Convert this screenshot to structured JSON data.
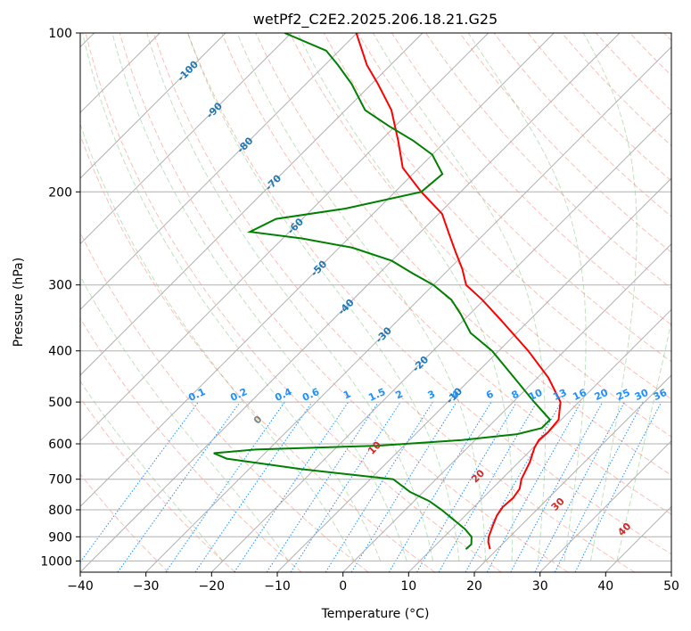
{
  "chart_data": {
    "type": "line",
    "title": "wetPf2_C2E2.2025.206.18.21.G25",
    "xlabel": "Temperature (°C)",
    "ylabel": "Pressure (hPa)",
    "xlim": [
      -40,
      50
    ],
    "ylim": [
      1050,
      100
    ],
    "y_scale": "log",
    "x_ticks": [
      -40,
      -30,
      -20,
      -10,
      0,
      10,
      20,
      30,
      40,
      50
    ],
    "y_ticks": [
      100,
      200,
      300,
      400,
      500,
      600,
      700,
      800,
      900,
      1000
    ],
    "grid": true,
    "series": [
      {
        "color": "#ff0000",
        "points": [
          {
            "p": 950,
            "t": 18.9
          },
          {
            "p": 920,
            "t": 17.5
          },
          {
            "p": 900,
            "t": 16.8
          },
          {
            "p": 860,
            "t": 15.8
          },
          {
            "p": 820,
            "t": 14.8
          },
          {
            "p": 790,
            "t": 14.4
          },
          {
            "p": 760,
            "t": 14.6
          },
          {
            "p": 730,
            "t": 14.2
          },
          {
            "p": 700,
            "t": 13.0
          },
          {
            "p": 650,
            "t": 11.7
          },
          {
            "p": 610,
            "t": 10.2
          },
          {
            "p": 590,
            "t": 9.7
          },
          {
            "p": 570,
            "t": 9.9
          },
          {
            "p": 540,
            "t": 9.6
          },
          {
            "p": 500,
            "t": 7.2
          },
          {
            "p": 450,
            "t": 1.7
          },
          {
            "p": 400,
            "t": -5.5
          },
          {
            "p": 350,
            "t": -14.3
          },
          {
            "p": 320,
            "t": -20.3
          },
          {
            "p": 300,
            "t": -25.0
          },
          {
            "p": 280,
            "t": -28.0
          },
          {
            "p": 260,
            "t": -31.6
          },
          {
            "p": 240,
            "t": -35.4
          },
          {
            "p": 220,
            "t": -39.5
          },
          {
            "p": 200,
            "t": -46.0
          },
          {
            "p": 180,
            "t": -52.5
          },
          {
            "p": 160,
            "t": -57.3
          },
          {
            "p": 140,
            "t": -63.0
          },
          {
            "p": 125,
            "t": -69.0
          },
          {
            "p": 115,
            "t": -73.6
          },
          {
            "p": 100,
            "t": -80.1
          }
        ]
      },
      {
        "color": "#008000",
        "points": [
          {
            "p": 950,
            "t": 15.2
          },
          {
            "p": 930,
            "t": 15.3
          },
          {
            "p": 900,
            "t": 14.2
          },
          {
            "p": 870,
            "t": 12.0
          },
          {
            "p": 840,
            "t": 9.3
          },
          {
            "p": 800,
            "t": 5.5
          },
          {
            "p": 770,
            "t": 2.3
          },
          {
            "p": 740,
            "t": -2.0
          },
          {
            "p": 700,
            "t": -6.5
          },
          {
            "p": 670,
            "t": -22.0
          },
          {
            "p": 640,
            "t": -35.0
          },
          {
            "p": 625,
            "t": -37.8
          },
          {
            "p": 615,
            "t": -32.0
          },
          {
            "p": 605,
            "t": -14.0
          },
          {
            "p": 590,
            "t": -2.0
          },
          {
            "p": 575,
            "t": 5.5
          },
          {
            "p": 560,
            "t": 8.3
          },
          {
            "p": 540,
            "t": 8.3
          },
          {
            "p": 500,
            "t": 3.2
          },
          {
            "p": 450,
            "t": -3.5
          },
          {
            "p": 400,
            "t": -11.0
          },
          {
            "p": 370,
            "t": -17.0
          },
          {
            "p": 340,
            "t": -21.5
          },
          {
            "p": 320,
            "t": -25.0
          },
          {
            "p": 300,
            "t": -30.0
          },
          {
            "p": 285,
            "t": -35.0
          },
          {
            "p": 270,
            "t": -40.0
          },
          {
            "p": 255,
            "t": -48.0
          },
          {
            "p": 245,
            "t": -57.0
          },
          {
            "p": 238,
            "t": -66.0
          },
          {
            "p": 225,
            "t": -64.0
          },
          {
            "p": 215,
            "t": -55.0
          },
          {
            "p": 200,
            "t": -46.0
          },
          {
            "p": 185,
            "t": -45.5
          },
          {
            "p": 170,
            "t": -50.0
          },
          {
            "p": 160,
            "t": -55.0
          },
          {
            "p": 150,
            "t": -61.0
          },
          {
            "p": 140,
            "t": -67.0
          },
          {
            "p": 125,
            "t": -73.0
          },
          {
            "p": 115,
            "t": -78.0
          },
          {
            "p": 108,
            "t": -82.0
          },
          {
            "p": 100,
            "t": -91.0
          }
        ]
      }
    ],
    "isotherm_labels": [
      {
        "value": -100,
        "text": "-100"
      },
      {
        "value": -90,
        "text": "-90"
      },
      {
        "value": -80,
        "text": "-80"
      },
      {
        "value": -70,
        "text": "-70"
      },
      {
        "value": -60,
        "text": "-60"
      },
      {
        "value": -50,
        "text": "-50"
      },
      {
        "value": -40,
        "text": "-40"
      },
      {
        "value": -30,
        "text": "-30"
      },
      {
        "value": -20,
        "text": "-20"
      },
      {
        "value": -10,
        "text": "-10"
      }
    ],
    "mixing_ratio_labels": [
      "0.1",
      "0.2",
      "0.4",
      "0.6",
      "1",
      "1.5",
      "2",
      "3",
      "4",
      "6",
      "8",
      "10",
      "13",
      "16",
      "20",
      "25",
      "30",
      "36"
    ],
    "mixing_ratio_values": [
      0.1,
      0.2,
      0.4,
      0.6,
      1,
      1.5,
      2,
      3,
      4,
      6,
      8,
      10,
      13,
      16,
      20,
      25,
      30,
      36
    ],
    "moist_adiabat_labels": [
      {
        "value": 0,
        "text": "0"
      },
      {
        "value": 10,
        "text": "10"
      },
      {
        "value": 20,
        "text": "20"
      },
      {
        "value": 30,
        "text": "30"
      },
      {
        "value": 40,
        "text": "40"
      }
    ],
    "colors": {
      "temperature": "#ff0000",
      "dewpoint": "#008000",
      "isotherm_labels": "#1f77b4",
      "mixing_ratio": "#1e90ff",
      "moist_label_warm": "#d62728",
      "moist_label_zero": "#808080",
      "dry_adiabat": "#fa8072",
      "moist_adiabat": "#2ca02c"
    }
  }
}
